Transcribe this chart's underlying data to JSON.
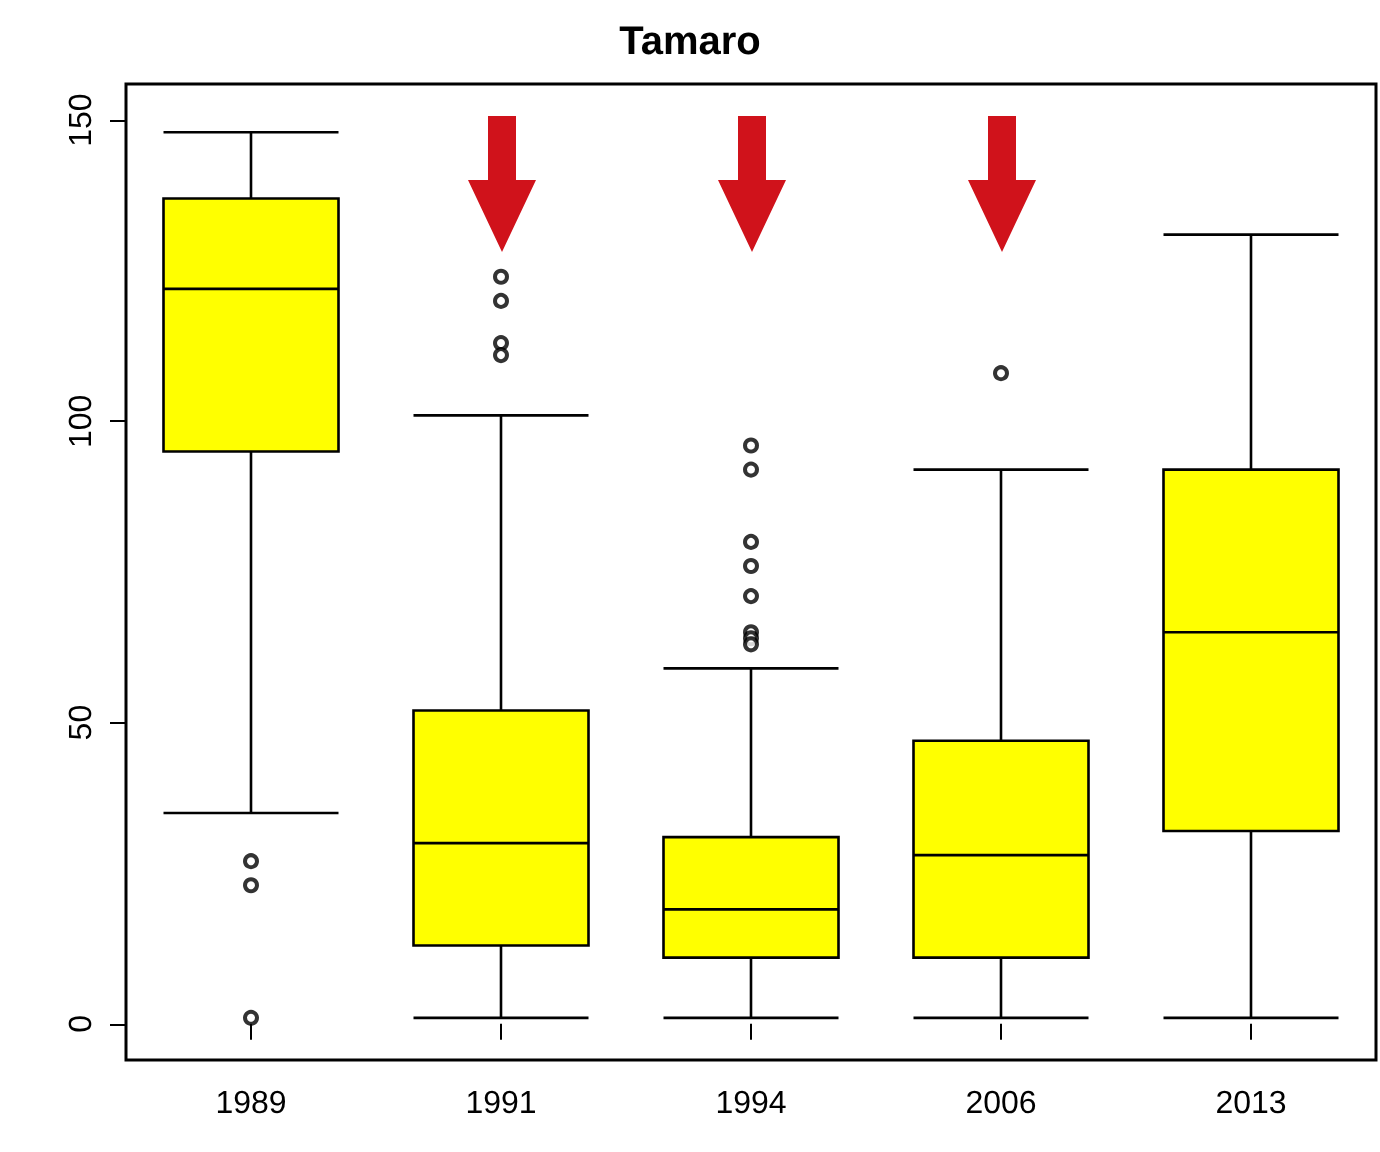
{
  "chart_data": {
    "type": "box",
    "title": "Tamaro",
    "categories": [
      "1989",
      "1991",
      "1994",
      "2006",
      "2013"
    ],
    "series": [
      {
        "color": "#ffff00",
        "boxes": [
          {
            "low": 35,
            "q1": 95,
            "median": 122,
            "q3": 137,
            "high": 148,
            "outliers": [
              27,
              23,
              1
            ]
          },
          {
            "low": 1,
            "q1": 13,
            "median": 30,
            "q3": 52,
            "high": 101,
            "outliers": [
              124,
              120,
              113,
              111
            ]
          },
          {
            "low": 1,
            "q1": 11,
            "median": 19,
            "q3": 31,
            "high": 59,
            "outliers": [
              96,
              92,
              80,
              76,
              71,
              65,
              64,
              63
            ]
          },
          {
            "low": 1,
            "q1": 11,
            "median": 28,
            "q3": 47,
            "high": 92,
            "outliers": [
              108
            ]
          },
          {
            "low": 1,
            "q1": 32,
            "median": 65,
            "q3": 92,
            "high": 131
          }
        ]
      }
    ],
    "ylim": [
      -6,
      156
    ],
    "yticks": [
      0,
      50,
      100,
      150
    ]
  }
}
